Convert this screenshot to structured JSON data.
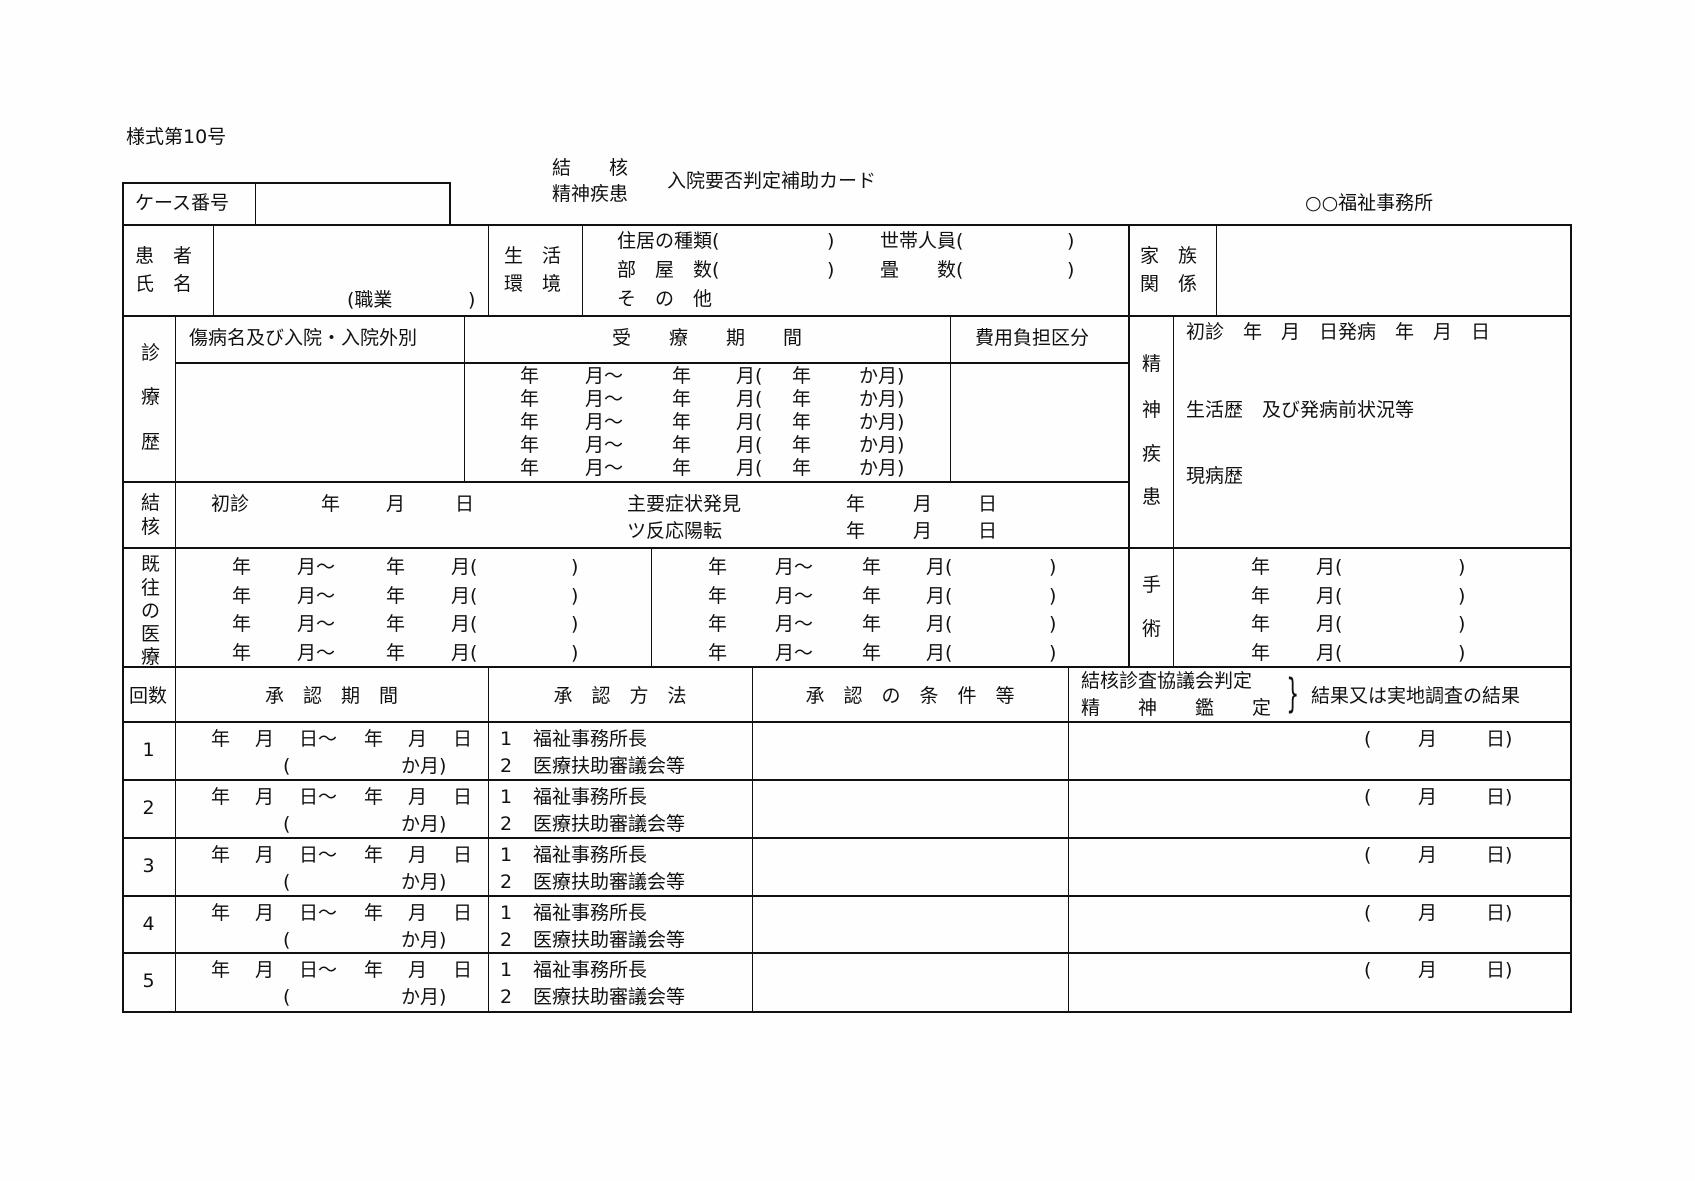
{
  "form_number": "様式第10号",
  "title": {
    "type_line1": "結　　核",
    "type_line2": "精神疾患",
    "main": "入院要否判定補助カード"
  },
  "office": "○○福祉事務所",
  "case_number": {
    "label": "ケース番号",
    "value": ""
  },
  "patient": {
    "label_line1": "患　者",
    "label_line2": "氏　名",
    "occupation_open": "(職業",
    "occupation_close": ")"
  },
  "living": {
    "label_line1": "生　活",
    "label_line2": "環　境",
    "housing_type": "住居の種類(",
    "household": "世帯人員(",
    "rooms": "部　屋　数(",
    "tatami": "畳　　数(",
    "other": "そ　の　他",
    "close": ")"
  },
  "family": {
    "label_line1": "家　族",
    "label_line2": "関　係"
  },
  "medical_history": {
    "label_chars": [
      "診",
      "療",
      "歴"
    ],
    "col_disease": "傷病名及び入院・入院外別",
    "col_period": "受　　療　　期　　間",
    "col_cost": "費用負担区分",
    "period_rows": [
      [
        "年",
        "月～",
        "年",
        "月(",
        "年",
        "か月)"
      ],
      [
        "年",
        "月～",
        "年",
        "月(",
        "年",
        "か月)"
      ],
      [
        "年",
        "月～",
        "年",
        "月(",
        "年",
        "か月)"
      ],
      [
        "年",
        "月～",
        "年",
        "月(",
        "年",
        "か月)"
      ],
      [
        "年",
        "月～",
        "年",
        "月(",
        "年",
        "か月)"
      ]
    ]
  },
  "mental": {
    "label_chars": [
      "精",
      "神",
      "疾",
      "患"
    ],
    "first_visit": "初診　年　月　日発病　年　月　日",
    "life_history": "生活歴　及び発病前状況等",
    "present_illness": "現病歴"
  },
  "tuberculosis": {
    "label_chars": [
      "結",
      "核"
    ],
    "first_visit": [
      "初診",
      "年",
      "月",
      "日"
    ],
    "symptom": [
      "主要症状発見",
      "年",
      "月",
      "日"
    ],
    "tuberculin": [
      "ツ反応陽転",
      "年",
      "月",
      "日"
    ]
  },
  "past_treatment": {
    "label_chars": [
      "既",
      "往",
      "の",
      "医",
      "療"
    ],
    "left_rows": [
      [
        "年",
        "月～",
        "年",
        "月(",
        ")"
      ],
      [
        "年",
        "月～",
        "年",
        "月(",
        ")"
      ],
      [
        "年",
        "月～",
        "年",
        "月(",
        ")"
      ],
      [
        "年",
        "月～",
        "年",
        "月(",
        ")"
      ]
    ],
    "right_rows": [
      [
        "年",
        "月～",
        "年",
        "月(",
        ")"
      ],
      [
        "年",
        "月～",
        "年",
        "月(",
        ")"
      ],
      [
        "年",
        "月～",
        "年",
        "月(",
        ")"
      ],
      [
        "年",
        "月～",
        "年",
        "月(",
        ")"
      ]
    ]
  },
  "surgery": {
    "label_chars": [
      "手",
      "術"
    ],
    "rows": [
      [
        "年",
        "月(",
        ")"
      ],
      [
        "年",
        "月(",
        ")"
      ],
      [
        "年",
        "月(",
        ")"
      ],
      [
        "年",
        "月(",
        ")"
      ]
    ]
  },
  "approval": {
    "headers": {
      "count": "回数",
      "period": "承　認　期　間",
      "method": "承　認　方　法",
      "conditions": "承　認　の　条　件　等",
      "judgement_line1": "結核診査協議会判定",
      "judgement_line2": "精　　神　　鑑　　定",
      "result": "結果又は実地調査の結果"
    },
    "rows": [
      {
        "no": "1",
        "period": [
          "年",
          "月",
          "日～",
          "年",
          "月",
          "日"
        ],
        "months": [
          "(",
          "か月)"
        ],
        "method1": [
          "1",
          "福祉事務所長"
        ],
        "method2": [
          "2",
          "医療扶助審議会等"
        ],
        "result_date": [
          "(",
          "月",
          "日)"
        ]
      },
      {
        "no": "2",
        "period": [
          "年",
          "月",
          "日～",
          "年",
          "月",
          "日"
        ],
        "months": [
          "(",
          "か月)"
        ],
        "method1": [
          "1",
          "福祉事務所長"
        ],
        "method2": [
          "2",
          "医療扶助審議会等"
        ],
        "result_date": [
          "(",
          "月",
          "日)"
        ]
      },
      {
        "no": "3",
        "period": [
          "年",
          "月",
          "日～",
          "年",
          "月",
          "日"
        ],
        "months": [
          "(",
          "か月)"
        ],
        "method1": [
          "1",
          "福祉事務所長"
        ],
        "method2": [
          "2",
          "医療扶助審議会等"
        ],
        "result_date": [
          "(",
          "月",
          "日)"
        ]
      },
      {
        "no": "4",
        "period": [
          "年",
          "月",
          "日～",
          "年",
          "月",
          "日"
        ],
        "months": [
          "(",
          "か月)"
        ],
        "method1": [
          "1",
          "福祉事務所長"
        ],
        "method2": [
          "2",
          "医療扶助審議会等"
        ],
        "result_date": [
          "(",
          "月",
          "日)"
        ]
      },
      {
        "no": "5",
        "period": [
          "年",
          "月",
          "日～",
          "年",
          "月",
          "日"
        ],
        "months": [
          "(",
          "か月)"
        ],
        "method1": [
          "1",
          "福祉事務所長"
        ],
        "method2": [
          "2",
          "医療扶助審議会等"
        ],
        "result_date": [
          "(",
          "月",
          "日)"
        ]
      }
    ]
  }
}
